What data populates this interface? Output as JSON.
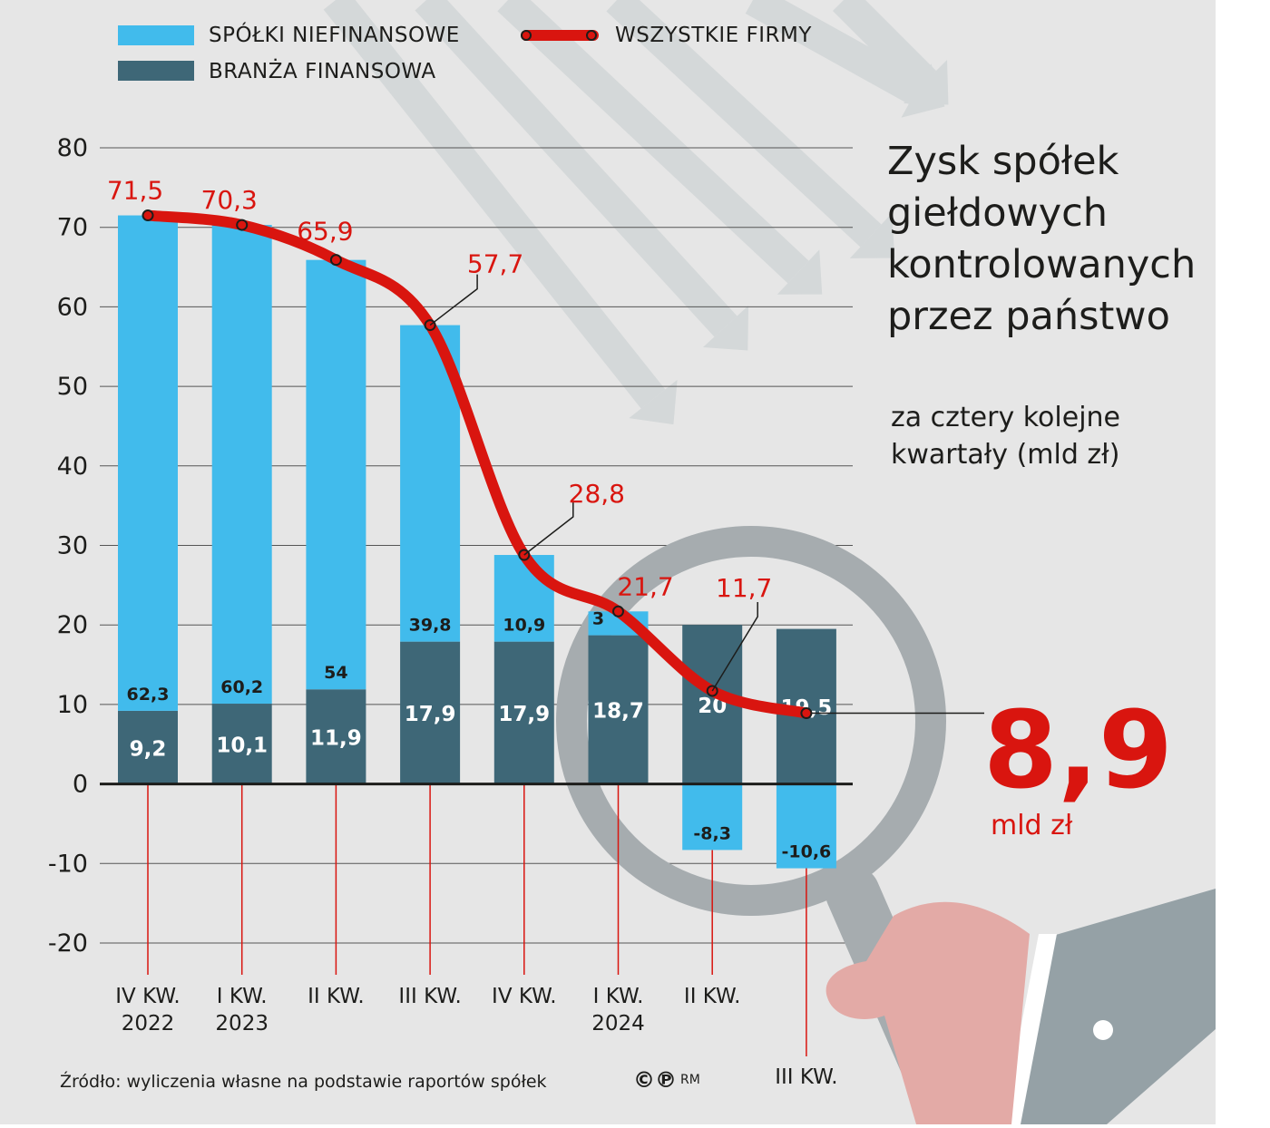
{
  "legend": {
    "nonfinancial": "SPÓŁKI NIEFINANSOWE",
    "financial": "BRANŻA FINANSOWA",
    "all": "WSZYSTKIE FIRMY"
  },
  "title_lines": [
    "Zysk spółek",
    "giełdowych",
    "kontrolowanych",
    "przez państwo"
  ],
  "subtitle_lines": [
    "za cztery kolejne",
    "kwartały (mld zł)"
  ],
  "highlight": {
    "value": "8,9",
    "unit": "mld zł"
  },
  "source": "Źródło: wyliczenia własne na podstawie raportów spółek",
  "credit": {
    "symbols": "©℗",
    "initials": "RM"
  },
  "colors": {
    "nonfinancial": "#41bbec",
    "financial": "#3e6777",
    "all": "#d9150f",
    "background": "#e6e6e6"
  },
  "icons": [
    "background-arrows-icon",
    "magnifier-icon",
    "hand-icon"
  ],
  "chart_data": {
    "type": "bar",
    "stacked": true,
    "ylim": [
      -20,
      80
    ],
    "yticks": [
      "80",
      "70",
      "60",
      "50",
      "40",
      "30",
      "20",
      "10",
      "0",
      "-10",
      "-20"
    ],
    "grid": true,
    "legend_position": "top-left",
    "categories": [
      [
        "IV KW.",
        "2022"
      ],
      [
        "I KW.",
        "2023"
      ],
      [
        "II KW.",
        ""
      ],
      [
        "III KW.",
        ""
      ],
      [
        "IV KW.",
        ""
      ],
      [
        "I KW.",
        "2024"
      ],
      [
        "II KW.",
        ""
      ],
      [
        "III KW.",
        ""
      ]
    ],
    "series": [
      {
        "name": "BRANŻA FINANSOWA",
        "values": [
          9.2,
          10.1,
          11.9,
          17.9,
          17.9,
          18.7,
          20,
          19.5
        ],
        "labels": [
          "9,2",
          "10,1",
          "11,9",
          "17,9",
          "17,9",
          "18,7",
          "20",
          "19,5"
        ]
      },
      {
        "name": "SPÓŁKI NIEFINANSOWE",
        "values": [
          62.3,
          60.2,
          54,
          39.8,
          10.9,
          3,
          -8.3,
          -10.6
        ],
        "labels": [
          "62,3",
          "60,2",
          "54",
          "39,8",
          "10,9",
          "3",
          "-8,3",
          "-10,6"
        ]
      },
      {
        "name": "WSZYSTKIE FIRMY",
        "type": "line",
        "values": [
          71.5,
          70.3,
          65.9,
          57.7,
          28.8,
          21.7,
          11.7,
          8.9
        ],
        "labels": [
          "71,5",
          "70,3",
          "65,9",
          "57,7",
          "28,8",
          "21,7",
          "11,7",
          "8,9"
        ]
      }
    ]
  }
}
